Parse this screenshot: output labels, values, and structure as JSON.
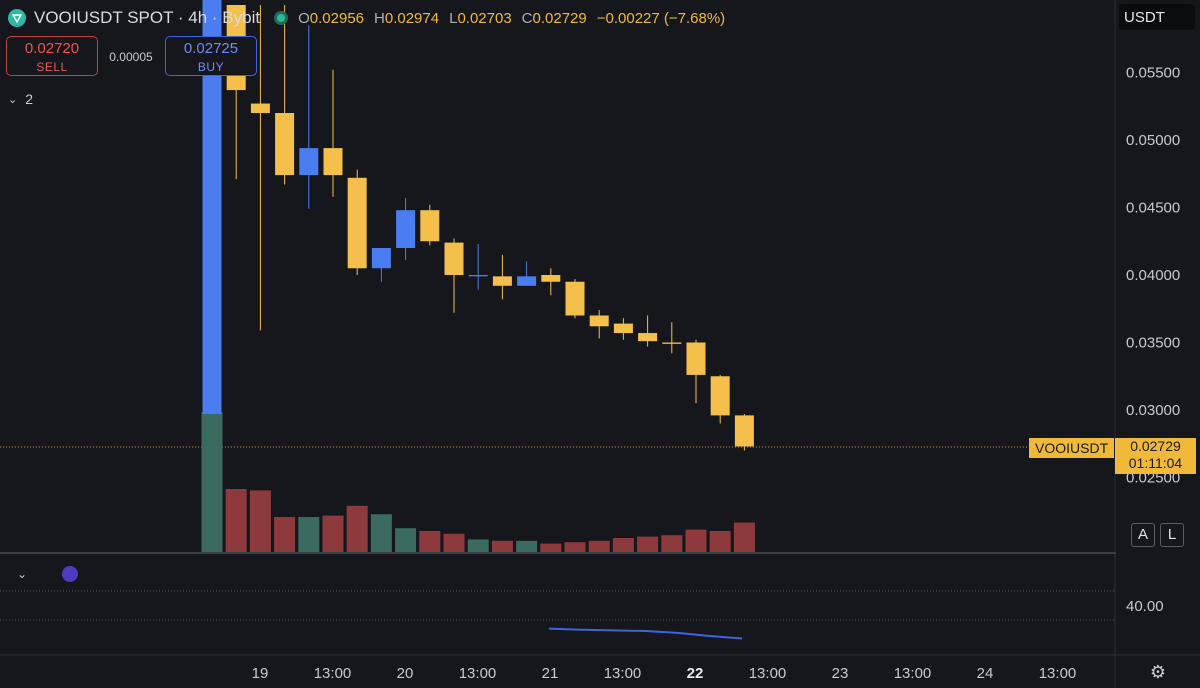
{
  "header": {
    "symbol": "VOOIUSDT SPOT · 4h · Bybit",
    "ohlc": [
      {
        "key": "O",
        "value": "0.02956"
      },
      {
        "key": "H",
        "value": "0.02974"
      },
      {
        "key": "L",
        "value": "0.02703"
      },
      {
        "key": "C",
        "value": "0.02729"
      },
      {
        "key": "",
        "value": "−0.00227 (−7.68%)"
      }
    ]
  },
  "trade": {
    "sell_price": "0.02720",
    "sell_label": "SELL",
    "spread": "0.00005",
    "buy_price": "0.02725",
    "buy_label": "BUY"
  },
  "indicators_collapsed": "2",
  "currency": "USDT",
  "last_price": {
    "name": "VOOIUSDT",
    "price": "0.02729",
    "countdown": "01:11:04"
  },
  "scale_buttons": {
    "auto": "A",
    "log": "L"
  },
  "colors": {
    "up": "#4a7df0",
    "down": "#f4c04b",
    "vol_up": "#3a6a60",
    "vol_down": "#8e3a3d",
    "osc_line": "#3e63e0"
  },
  "icons": {
    "logo": "vooi-logo-icon",
    "settings": "settings-icon"
  },
  "chart_data": [
    {
      "type": "candlestick",
      "interval": "4h",
      "y_ticks": [
        0.055,
        0.05,
        0.045,
        0.04,
        0.035,
        0.03,
        0.025
      ],
      "y_tick_labels": [
        "0.05500",
        "0.05000",
        "0.04500",
        "0.04000",
        "0.03500",
        "0.03000",
        "0.02500"
      ],
      "ylim": [
        0.0237,
        0.0587
      ],
      "x_tick_labels": [
        "19",
        "13:00",
        "20",
        "13:00",
        "21",
        "13:00",
        "22",
        "13:00",
        "23",
        "13:00",
        "24",
        "13:00"
      ],
      "candles": [
        {
          "o": 0.0297,
          "h": 0.065,
          "l": 0.0297,
          "c": 0.065
        },
        {
          "o": 0.06,
          "h": 0.06,
          "l": 0.0471,
          "c": 0.0537
        },
        {
          "o": 0.0527,
          "h": 0.06,
          "l": 0.0359,
          "c": 0.052
        },
        {
          "o": 0.052,
          "h": 0.06,
          "l": 0.0467,
          "c": 0.0474
        },
        {
          "o": 0.0474,
          "h": 0.0585,
          "l": 0.0449,
          "c": 0.0494
        },
        {
          "o": 0.0494,
          "h": 0.0552,
          "l": 0.0458,
          "c": 0.0474
        },
        {
          "o": 0.0472,
          "h": 0.0478,
          "l": 0.04,
          "c": 0.0405
        },
        {
          "o": 0.0405,
          "h": 0.042,
          "l": 0.0395,
          "c": 0.042
        },
        {
          "o": 0.042,
          "h": 0.0457,
          "l": 0.0411,
          "c": 0.0448
        },
        {
          "o": 0.0448,
          "h": 0.0452,
          "l": 0.0422,
          "c": 0.0425
        },
        {
          "o": 0.0424,
          "h": 0.0427,
          "l": 0.0372,
          "c": 0.04
        },
        {
          "o": 0.0399,
          "h": 0.0423,
          "l": 0.0389,
          "c": 0.04
        },
        {
          "o": 0.0399,
          "h": 0.0415,
          "l": 0.0382,
          "c": 0.0392
        },
        {
          "o": 0.0392,
          "h": 0.041,
          "l": 0.0392,
          "c": 0.0399
        },
        {
          "o": 0.04,
          "h": 0.0405,
          "l": 0.0385,
          "c": 0.0395
        },
        {
          "o": 0.0395,
          "h": 0.0397,
          "l": 0.0368,
          "c": 0.037
        },
        {
          "o": 0.037,
          "h": 0.0374,
          "l": 0.0353,
          "c": 0.0362
        },
        {
          "o": 0.0364,
          "h": 0.0368,
          "l": 0.0352,
          "c": 0.0357
        },
        {
          "o": 0.0357,
          "h": 0.037,
          "l": 0.0347,
          "c": 0.0351
        },
        {
          "o": 0.035,
          "h": 0.0365,
          "l": 0.0342,
          "c": 0.0349
        },
        {
          "o": 0.035,
          "h": 0.0352,
          "l": 0.0305,
          "c": 0.0326
        },
        {
          "o": 0.0325,
          "h": 0.0326,
          "l": 0.029,
          "c": 0.0296
        },
        {
          "o": 0.0296,
          "h": 0.0297,
          "l": 0.027,
          "c": 0.0273
        }
      ],
      "volume": [
        {
          "v": 1.0,
          "dir": "up"
        },
        {
          "v": 0.45,
          "dir": "down"
        },
        {
          "v": 0.44,
          "dir": "down"
        },
        {
          "v": 0.25,
          "dir": "down"
        },
        {
          "v": 0.25,
          "dir": "up"
        },
        {
          "v": 0.26,
          "dir": "down"
        },
        {
          "v": 0.33,
          "dir": "down"
        },
        {
          "v": 0.27,
          "dir": "up"
        },
        {
          "v": 0.17,
          "dir": "up"
        },
        {
          "v": 0.15,
          "dir": "down"
        },
        {
          "v": 0.13,
          "dir": "down"
        },
        {
          "v": 0.09,
          "dir": "up"
        },
        {
          "v": 0.08,
          "dir": "down"
        },
        {
          "v": 0.08,
          "dir": "up"
        },
        {
          "v": 0.06,
          "dir": "down"
        },
        {
          "v": 0.07,
          "dir": "down"
        },
        {
          "v": 0.08,
          "dir": "down"
        },
        {
          "v": 0.1,
          "dir": "down"
        },
        {
          "v": 0.11,
          "dir": "down"
        },
        {
          "v": 0.12,
          "dir": "down"
        },
        {
          "v": 0.16,
          "dir": "down"
        },
        {
          "v": 0.15,
          "dir": "down"
        },
        {
          "v": 0.21,
          "dir": "down"
        }
      ]
    },
    {
      "type": "line",
      "y_tick_labels": [
        "40.00"
      ],
      "ylim": [
        30,
        48
      ],
      "series": [
        {
          "values": [
            36.2,
            36.0,
            35.9,
            35.8,
            35.5,
            35.0,
            34.6
          ]
        }
      ]
    }
  ]
}
